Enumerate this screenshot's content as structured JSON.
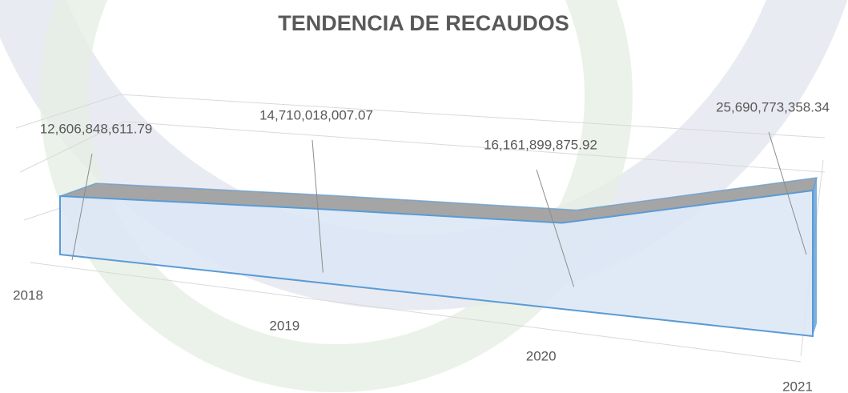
{
  "chart_data": {
    "type": "line3d",
    "title": "TENDENCIA DE RECAUDOS",
    "categories": [
      "2018",
      "2019",
      "2020",
      "2021"
    ],
    "series": [
      {
        "color": "#5b9bd5",
        "values": [
          12606848611.79,
          14710018007.07,
          16161899875.92,
          25690773358.34
        ],
        "value_labels": [
          "12,606,848,611.79",
          "14,710,018,007.07",
          "16,161,899,875.92",
          "25,690,773,358.34"
        ]
      }
    ]
  }
}
